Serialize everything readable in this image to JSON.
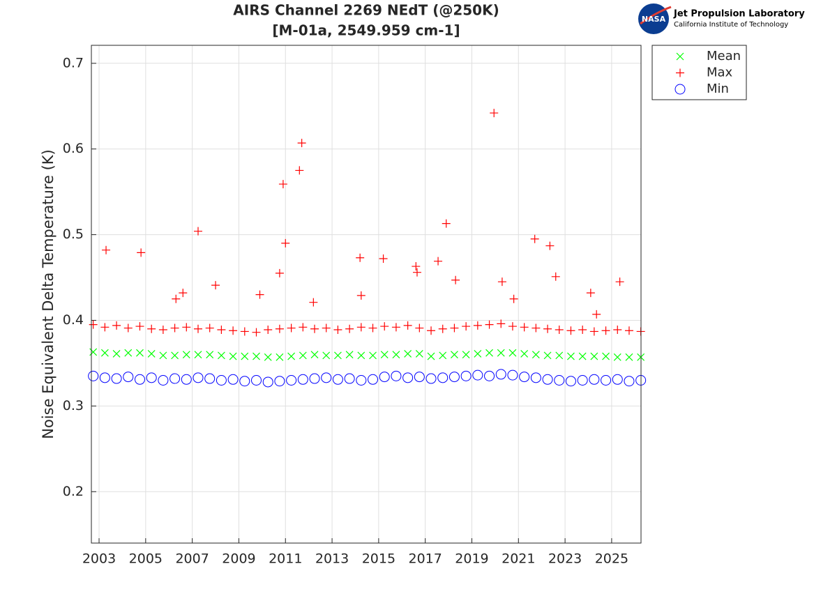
{
  "chart_data": {
    "type": "scatter",
    "title": [
      "AIRS Channel 2269 NEdT (@250K)",
      "[M-01a, 2549.959 cm-1]"
    ],
    "ylabel": "Noise Equivalent Delta Temperature (K)",
    "xlim": [
      2002.67,
      2026.26
    ],
    "ylim": [
      0.14,
      0.721
    ],
    "xticks": [
      2003,
      2005,
      2007,
      2009,
      2011,
      2013,
      2015,
      2017,
      2019,
      2021,
      2023,
      2025
    ],
    "yticks": [
      0.2,
      0.3,
      0.4,
      0.5,
      0.6,
      0.7
    ],
    "grid": true,
    "legend": "outside-top-right",
    "series": [
      {
        "name": "Mean",
        "color": "#00ff00",
        "marker": "x",
        "x": [
          2002.75,
          2003.25,
          2003.75,
          2004.25,
          2004.75,
          2005.25,
          2005.75,
          2006.25,
          2006.75,
          2007.25,
          2007.75,
          2008.25,
          2008.75,
          2009.25,
          2009.75,
          2010.25,
          2010.75,
          2011.25,
          2011.75,
          2012.25,
          2012.75,
          2013.25,
          2013.75,
          2014.25,
          2014.75,
          2015.25,
          2015.75,
          2016.25,
          2016.75,
          2017.25,
          2017.75,
          2018.25,
          2018.75,
          2019.25,
          2019.75,
          2020.25,
          2020.75,
          2021.25,
          2021.75,
          2022.25,
          2022.75,
          2023.25,
          2023.75,
          2024.25,
          2024.75,
          2025.25,
          2025.75,
          2026.25
        ],
        "values": [
          0.363,
          0.362,
          0.361,
          0.362,
          0.362,
          0.361,
          0.359,
          0.359,
          0.36,
          0.36,
          0.36,
          0.359,
          0.358,
          0.358,
          0.358,
          0.357,
          0.357,
          0.358,
          0.359,
          0.36,
          0.359,
          0.359,
          0.36,
          0.359,
          0.359,
          0.36,
          0.36,
          0.361,
          0.361,
          0.358,
          0.359,
          0.36,
          0.36,
          0.361,
          0.362,
          0.362,
          0.362,
          0.361,
          0.36,
          0.359,
          0.359,
          0.358,
          0.358,
          0.358,
          0.358,
          0.357,
          0.357,
          0.357
        ]
      },
      {
        "name": "Max",
        "color": "#ff0000",
        "marker": "+",
        "x": [
          2002.75,
          2003.25,
          2003.75,
          2004.25,
          2004.75,
          2005.25,
          2005.75,
          2006.25,
          2006.75,
          2007.25,
          2007.75,
          2008.25,
          2008.75,
          2009.25,
          2009.75,
          2010.25,
          2010.75,
          2011.25,
          2011.75,
          2012.25,
          2012.75,
          2013.25,
          2013.75,
          2014.25,
          2014.75,
          2015.25,
          2015.75,
          2016.25,
          2016.75,
          2017.25,
          2017.75,
          2018.25,
          2018.75,
          2019.25,
          2019.75,
          2020.25,
          2020.75,
          2021.25,
          2021.75,
          2022.25,
          2022.75,
          2023.25,
          2023.75,
          2024.25,
          2024.75,
          2025.25,
          2025.75,
          2026.25,
          2003.3,
          2004.8,
          2007.25,
          2006.6,
          2006.3,
          2008.0,
          2009.9,
          2010.75,
          2010.9,
          2011.0,
          2011.6,
          2011.7,
          2012.2,
          2014.2,
          2014.25,
          2015.2,
          2016.6,
          2016.65,
          2017.55,
          2017.9,
          2018.3,
          2019.95,
          2020.3,
          2020.8,
          2021.7,
          2022.35,
          2022.6,
          2024.1,
          2024.35,
          2025.35
        ],
        "values": [
          0.395,
          0.392,
          0.394,
          0.391,
          0.393,
          0.39,
          0.389,
          0.391,
          0.392,
          0.39,
          0.391,
          0.389,
          0.388,
          0.387,
          0.386,
          0.389,
          0.39,
          0.391,
          0.392,
          0.39,
          0.391,
          0.389,
          0.39,
          0.392,
          0.391,
          0.393,
          0.392,
          0.394,
          0.391,
          0.388,
          0.39,
          0.391,
          0.393,
          0.394,
          0.395,
          0.396,
          0.393,
          0.392,
          0.391,
          0.39,
          0.389,
          0.388,
          0.389,
          0.387,
          0.388,
          0.389,
          0.388,
          0.387,
          0.482,
          0.479,
          0.504,
          0.432,
          0.425,
          0.441,
          0.43,
          0.455,
          0.559,
          0.49,
          0.575,
          0.607,
          0.421,
          0.473,
          0.429,
          0.472,
          0.463,
          0.456,
          0.469,
          0.513,
          0.447,
          0.642,
          0.445,
          0.425,
          0.495,
          0.487,
          0.451,
          0.432,
          0.407,
          0.445
        ]
      },
      {
        "name": "Min",
        "color": "#0000ff",
        "marker": "o",
        "x": [
          2002.75,
          2003.25,
          2003.75,
          2004.25,
          2004.75,
          2005.25,
          2005.75,
          2006.25,
          2006.75,
          2007.25,
          2007.75,
          2008.25,
          2008.75,
          2009.25,
          2009.75,
          2010.25,
          2010.75,
          2011.25,
          2011.75,
          2012.25,
          2012.75,
          2013.25,
          2013.75,
          2014.25,
          2014.75,
          2015.25,
          2015.75,
          2016.25,
          2016.75,
          2017.25,
          2017.75,
          2018.25,
          2018.75,
          2019.25,
          2019.75,
          2020.25,
          2020.75,
          2021.25,
          2021.75,
          2022.25,
          2022.75,
          2023.25,
          2023.75,
          2024.25,
          2024.75,
          2025.25,
          2025.75,
          2026.25
        ],
        "values": [
          0.335,
          0.333,
          0.332,
          0.334,
          0.331,
          0.333,
          0.33,
          0.332,
          0.331,
          0.333,
          0.332,
          0.33,
          0.331,
          0.329,
          0.33,
          0.328,
          0.329,
          0.33,
          0.331,
          0.332,
          0.333,
          0.331,
          0.332,
          0.33,
          0.331,
          0.334,
          0.335,
          0.333,
          0.334,
          0.332,
          0.333,
          0.334,
          0.335,
          0.336,
          0.335,
          0.337,
          0.336,
          0.334,
          0.333,
          0.331,
          0.33,
          0.329,
          0.33,
          0.331,
          0.33,
          0.331,
          0.329,
          0.33
        ]
      }
    ]
  },
  "branding": {
    "badge": "NASA",
    "org": "Jet Propulsion Laboratory",
    "institute": "California Institute of Technology"
  }
}
